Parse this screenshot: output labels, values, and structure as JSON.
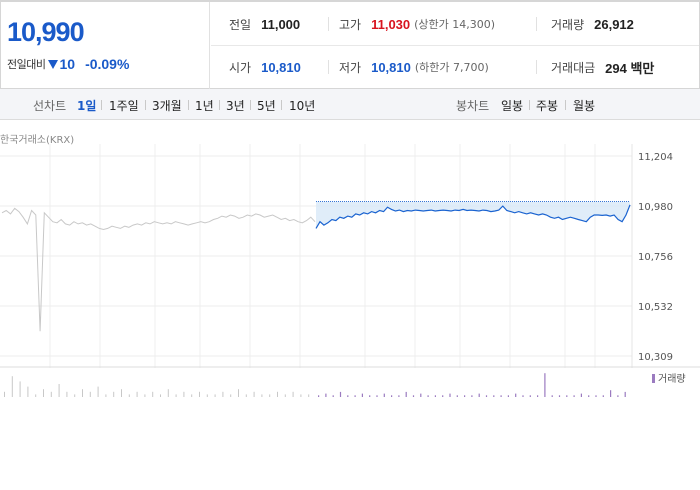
{
  "current": {
    "price": "10,990",
    "change_label": "전일대비",
    "change": "10",
    "change_pct": "-0.09%"
  },
  "stats": {
    "prev_close": {
      "label": "전일",
      "value": "11,000"
    },
    "high": {
      "label": "고가",
      "value": "11,030",
      "limit": "(상한가 14,300)"
    },
    "volume": {
      "label": "거래량",
      "value": "26,912"
    },
    "open": {
      "label": "시가",
      "value": "10,810"
    },
    "low": {
      "label": "저가",
      "value": "10,810",
      "limit": "(하한가 7,700)"
    },
    "amount": {
      "label": "거래대금",
      "value": "294 백만"
    }
  },
  "tabs": {
    "line_label": "선차트",
    "line_items": [
      "1일",
      "1주일",
      "3개월",
      "1년",
      "3년",
      "5년",
      "10년"
    ],
    "line_active": "1일",
    "candle_label": "봉차트",
    "candle_items": [
      "일봉",
      "주봉",
      "월봉"
    ]
  },
  "source": "한국거래소(KRX)",
  "chart_data": {
    "type": "line",
    "y_ticks": [
      "11,204",
      "10,980",
      "10,756",
      "10,532",
      "10,309"
    ],
    "ylim": [
      10309,
      11204
    ],
    "reference_price": 11000,
    "volume_legend": "거래량",
    "colors": {
      "today": "#1a63d0",
      "history": "#c8c8c8",
      "above_ref": "#e02020",
      "fill": "#d8e8f8",
      "volume": "#9b7bc0"
    },
    "history": [
      10950,
      10960,
      10945,
      10970,
      10955,
      10930,
      10900,
      10960,
      10940,
      10420,
      10950,
      10930,
      10910,
      10905,
      10920,
      10900,
      10895,
      10910,
      10900,
      10905,
      10895,
      10900,
      10890,
      10880,
      10875,
      10880,
      10890,
      10885,
      10880,
      10890,
      10885,
      10895,
      10900,
      10895,
      10905,
      10900,
      10910,
      10905,
      10900,
      10905,
      10900,
      10910,
      10905,
      10900,
      10895,
      10900,
      10905,
      10910,
      10905,
      10910,
      10920,
      10925,
      10935,
      10930,
      10940,
      10935,
      10925,
      10930,
      10940,
      10935,
      10945,
      10940,
      10930,
      10935,
      10940,
      10930,
      10920,
      10925,
      10915,
      10920,
      10910,
      10905,
      10915,
      10930,
      10910
    ],
    "today": [
      10880,
      10910,
      10895,
      10905,
      10920,
      10915,
      10930,
      10925,
      10935,
      10930,
      10945,
      10940,
      10950,
      10945,
      10955,
      10950,
      10960,
      10955,
      10975,
      10965,
      10958,
      10962,
      10955,
      10960,
      10958,
      10962,
      10960,
      10958,
      10960,
      10962,
      10958,
      10960,
      10962,
      10960,
      10958,
      10962,
      10960,
      10965,
      10960,
      10962,
      10960,
      10958,
      10962,
      10960,
      10955,
      10958,
      10962,
      10980,
      10960,
      10955,
      10950,
      10955,
      10950,
      10945,
      10950,
      10945,
      10940,
      10945,
      10940,
      10930,
      10925,
      10930,
      10920,
      10925,
      10930,
      10925,
      10920,
      10915,
      10910,
      10930,
      10940,
      10940,
      10938,
      10940,
      10935,
      10940,
      10920,
      10910,
      10940,
      10985
    ],
    "history_volume": [
      2,
      8,
      6,
      4,
      1,
      3,
      2,
      5,
      2,
      1,
      3,
      2,
      4,
      1,
      2,
      3,
      1,
      2,
      1,
      2,
      1,
      3,
      1,
      2,
      1,
      2,
      1,
      1,
      2,
      1,
      3,
      1,
      2,
      1,
      1,
      2,
      1,
      2,
      1,
      1
    ],
    "today_volume": [
      1,
      2,
      1,
      3,
      1,
      1,
      2,
      1,
      1,
      2,
      1,
      1,
      3,
      1,
      2,
      1,
      1,
      1,
      2,
      1,
      1,
      1,
      2,
      1,
      1,
      1,
      1,
      2,
      1,
      1,
      1,
      14,
      1,
      1,
      1,
      1,
      2,
      1,
      1,
      1,
      4,
      1,
      3
    ]
  }
}
